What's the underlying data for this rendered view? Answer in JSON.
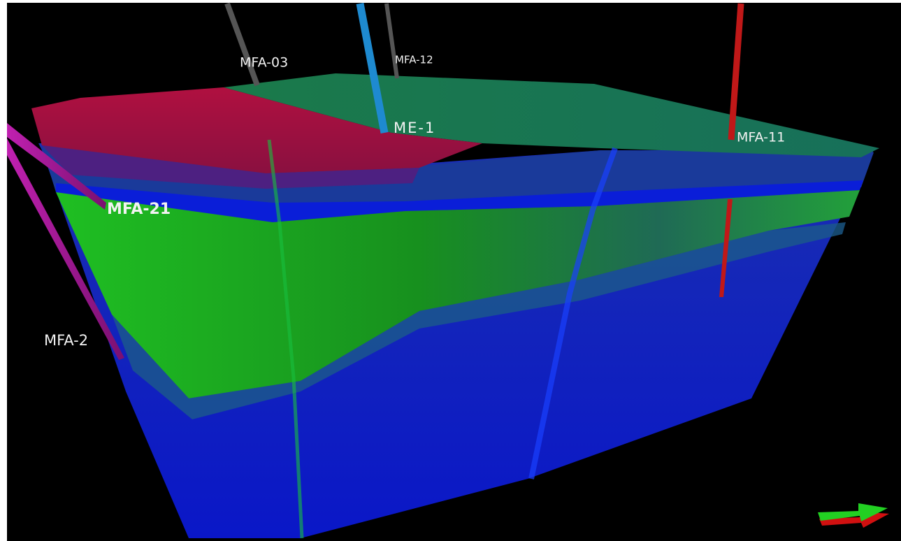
{
  "wells": [
    {
      "label": "MFA-03"
    },
    {
      "label": "MFA-12"
    },
    {
      "label": "ME-1"
    },
    {
      "label": "MFA-11"
    },
    {
      "label": "MFA-21"
    },
    {
      "label": "MFA-2"
    }
  ]
}
